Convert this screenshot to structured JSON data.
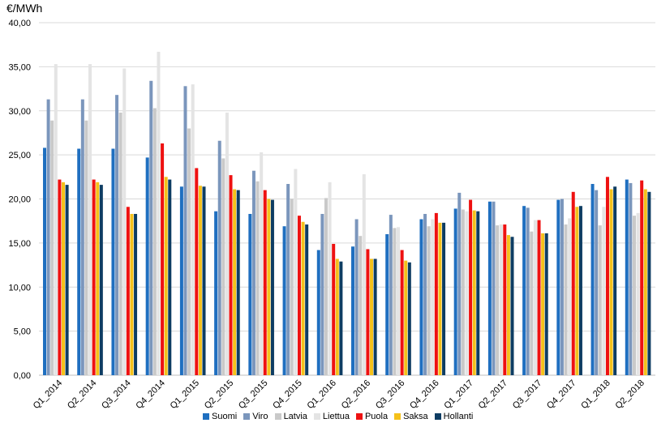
{
  "chart_data": {
    "type": "bar",
    "ylabel": "€/MWh",
    "ylim": [
      0,
      40
    ],
    "yticks": [
      "0,00",
      "5,00",
      "10,00",
      "15,00",
      "20,00",
      "25,00",
      "30,00",
      "35,00",
      "40,00"
    ],
    "grid": true,
    "legend_position": "bottom",
    "categories": [
      "Q1_2014",
      "Q2_2014",
      "Q3_2014",
      "Q4_2014",
      "Q1_2015",
      "Q2_2015",
      "Q3_2015",
      "Q4_2015",
      "Q1_2016",
      "Q2_2016",
      "Q3_2016",
      "Q4_2016",
      "Q1_2017",
      "Q2_2017",
      "Q3_2017",
      "Q4_2017",
      "Q1_2018",
      "Q2_2018"
    ],
    "series": [
      {
        "name": "Suomi",
        "color": "#1f6fc0",
        "values": [
          25.8,
          25.7,
          25.7,
          24.7,
          21.4,
          18.6,
          18.3,
          16.9,
          14.2,
          14.6,
          16.0,
          17.7,
          18.9,
          19.7,
          19.2,
          19.9,
          21.7,
          22.2
        ]
      },
      {
        "name": "Viro",
        "color": "#7b96bc",
        "values": [
          31.3,
          31.3,
          31.8,
          33.4,
          32.8,
          26.6,
          23.2,
          21.7,
          18.3,
          17.7,
          18.2,
          18.3,
          20.7,
          19.7,
          19.0,
          20.0,
          21.0,
          21.8
        ]
      },
      {
        "name": "Latvia",
        "color": "#c9c9c9",
        "values": [
          28.9,
          28.9,
          29.8,
          30.3,
          28.0,
          24.6,
          22.0,
          20.0,
          20.1,
          15.8,
          16.7,
          16.9,
          18.8,
          17.0,
          16.3,
          17.1,
          17.0,
          18.1
        ]
      },
      {
        "name": "Liettua",
        "color": "#e4e4e4",
        "values": [
          35.3,
          35.3,
          34.8,
          36.7,
          33.0,
          29.8,
          25.3,
          23.4,
          21.9,
          22.8,
          16.8,
          17.7,
          18.6,
          17.1,
          17.6,
          17.8,
          19.1,
          18.4
        ]
      },
      {
        "name": "Puola",
        "color": "#ee1111",
        "values": [
          22.2,
          22.2,
          19.1,
          26.3,
          23.5,
          22.7,
          21.0,
          18.1,
          14.9,
          14.3,
          14.2,
          18.4,
          19.9,
          17.1,
          17.6,
          20.8,
          22.5,
          22.1
        ]
      },
      {
        "name": "Saksa",
        "color": "#f5c11a",
        "values": [
          21.9,
          21.9,
          18.3,
          22.5,
          21.5,
          21.1,
          20.0,
          17.4,
          13.2,
          13.2,
          13.0,
          17.3,
          18.7,
          15.9,
          16.1,
          19.1,
          21.1,
          21.1
        ]
      },
      {
        "name": "Hollanti",
        "color": "#0e3d63",
        "values": [
          21.6,
          21.6,
          18.3,
          22.2,
          21.4,
          21.0,
          19.9,
          17.1,
          12.9,
          13.2,
          12.8,
          17.3,
          18.6,
          15.7,
          16.1,
          19.2,
          21.4,
          20.8
        ]
      }
    ]
  }
}
